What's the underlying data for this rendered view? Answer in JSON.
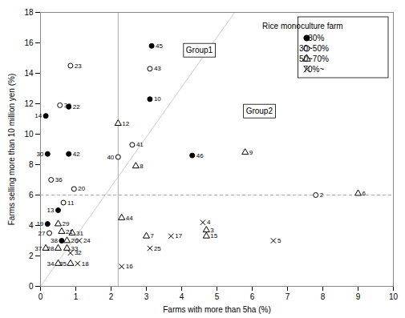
{
  "chart_data": {
    "type": "scatter",
    "xlabel": "Farms with more than 5ha (%)",
    "ylabel": "Farms selling more than 10 million yen (%)",
    "xlim": [
      0,
      10
    ],
    "ylim": [
      0,
      18
    ],
    "xticks": [
      0,
      1,
      2,
      3,
      4,
      5,
      6,
      7,
      8,
      9,
      10
    ],
    "yticks": [
      0,
      2,
      4,
      6,
      8,
      10,
      12,
      14,
      16,
      18
    ],
    "grid": false,
    "legend": "upper right",
    "legend_title": "Rice monoculture farm",
    "series": [
      {
        "name": "~30%",
        "marker": "filled_circle",
        "color": "#000000"
      },
      {
        "name": "30~50%",
        "marker": "open_circle",
        "color": "#000000"
      },
      {
        "name": "50~70%",
        "marker": "triangle",
        "color": "#000000"
      },
      {
        "name": "70%~",
        "marker": "cross",
        "color": "#000000"
      }
    ],
    "reference_lines": [
      {
        "x1": 0.0,
        "y1": 0.0,
        "x2": 5.5,
        "y2": 18.0,
        "color": "#cccccc",
        "line_style": "solid"
      },
      {
        "x": 2.2,
        "color": "#aaaaaa",
        "line_style": "solid"
      },
      {
        "y": 6.0,
        "color": "#aaaaaa",
        "line_style": "dashed"
      }
    ],
    "annotations": [
      {
        "text": "Group1",
        "x": 4.5,
        "y": 15.5
      },
      {
        "text": "Group2",
        "x": 6.2,
        "y": 11.5
      }
    ],
    "points": [
      {
        "label": "14",
        "x": 0.15,
        "y": 11.2,
        "marker": "filled_circle",
        "label_position": "left"
      },
      {
        "label": "39",
        "x": 0.55,
        "y": 11.9,
        "marker": "open_circle",
        "label_position": "right"
      },
      {
        "label": "22",
        "x": 0.8,
        "y": 11.8,
        "marker": "filled_circle",
        "label_position": "right"
      },
      {
        "label": "23",
        "x": 0.85,
        "y": 14.5,
        "marker": "open_circle",
        "label_position": "right"
      },
      {
        "label": "30",
        "x": 0.2,
        "y": 8.7,
        "marker": "filled_circle",
        "label_position": "left"
      },
      {
        "label": "42",
        "x": 0.8,
        "y": 8.7,
        "marker": "filled_circle",
        "label_position": "right"
      },
      {
        "label": "36",
        "x": 0.3,
        "y": 7.0,
        "marker": "open_circle",
        "label_position": "right"
      },
      {
        "label": "20",
        "x": 0.95,
        "y": 6.4,
        "marker": "open_circle",
        "label_position": "right"
      },
      {
        "label": "11",
        "x": 0.65,
        "y": 5.5,
        "marker": "open_circle",
        "label_position": "right"
      },
      {
        "label": "13",
        "x": 0.5,
        "y": 5.0,
        "marker": "filled_circle",
        "label_position": "left"
      },
      {
        "label": "19",
        "x": 0.2,
        "y": 4.1,
        "marker": "filled_circle",
        "label_position": "left"
      },
      {
        "label": "29",
        "x": 0.5,
        "y": 4.1,
        "marker": "triangle",
        "label_position": "right"
      },
      {
        "label": "27",
        "x": 0.25,
        "y": 3.5,
        "marker": "open_circle",
        "label_position": "left"
      },
      {
        "label": "21",
        "x": 0.6,
        "y": 3.6,
        "marker": "triangle",
        "label_position": "right"
      },
      {
        "label": "31",
        "x": 0.9,
        "y": 3.5,
        "marker": "triangle",
        "label_position": "right"
      },
      {
        "label": "38",
        "x": 0.6,
        "y": 3.0,
        "marker": "filled_circle",
        "label_position": "left"
      },
      {
        "label": "26",
        "x": 0.75,
        "y": 3.0,
        "marker": "triangle",
        "label_position": "right"
      },
      {
        "label": "24",
        "x": 1.1,
        "y": 3.0,
        "marker": "cross",
        "label_position": "right"
      },
      {
        "label": "37",
        "x": 0.15,
        "y": 2.5,
        "marker": "triangle",
        "label_position": "left"
      },
      {
        "label": "28",
        "x": 0.5,
        "y": 2.5,
        "marker": "triangle",
        "label_position": "left"
      },
      {
        "label": "33",
        "x": 0.75,
        "y": 2.5,
        "marker": "triangle",
        "label_position": "right"
      },
      {
        "label": "32",
        "x": 0.85,
        "y": 2.2,
        "marker": "cross",
        "label_position": "right"
      },
      {
        "label": "34",
        "x": 0.5,
        "y": 1.5,
        "marker": "triangle",
        "label_position": "left"
      },
      {
        "label": "35",
        "x": 0.85,
        "y": 1.5,
        "marker": "triangle",
        "label_position": "left"
      },
      {
        "label": "18",
        "x": 1.05,
        "y": 1.5,
        "marker": "cross",
        "label_position": "right"
      },
      {
        "label": "10",
        "x": 3.1,
        "y": 12.3,
        "marker": "filled_circle",
        "label_position": "right"
      },
      {
        "label": "45",
        "x": 3.15,
        "y": 15.8,
        "marker": "filled_circle",
        "label_position": "right"
      },
      {
        "label": "43",
        "x": 3.1,
        "y": 14.3,
        "marker": "open_circle",
        "label_position": "right"
      },
      {
        "label": "12",
        "x": 2.2,
        "y": 10.7,
        "marker": "triangle",
        "label_position": "right"
      },
      {
        "label": "41",
        "x": 2.6,
        "y": 9.3,
        "marker": "open_circle",
        "label_position": "right"
      },
      {
        "label": "40",
        "x": 2.2,
        "y": 8.5,
        "marker": "open_circle",
        "label_position": "left"
      },
      {
        "label": "8",
        "x": 2.7,
        "y": 7.9,
        "marker": "triangle",
        "label_position": "right"
      },
      {
        "label": "44",
        "x": 2.3,
        "y": 4.5,
        "marker": "triangle",
        "label_position": "right"
      },
      {
        "label": "7",
        "x": 3.0,
        "y": 3.3,
        "marker": "triangle",
        "label_position": "right"
      },
      {
        "label": "25",
        "x": 3.1,
        "y": 2.5,
        "marker": "cross",
        "label_position": "right"
      },
      {
        "label": "17",
        "x": 3.7,
        "y": 3.3,
        "marker": "cross",
        "label_position": "right"
      },
      {
        "label": "16",
        "x": 2.3,
        "y": 1.3,
        "marker": "cross",
        "label_position": "right"
      },
      {
        "label": "46",
        "x": 4.3,
        "y": 8.6,
        "marker": "filled_circle",
        "label_position": "right"
      },
      {
        "label": "9",
        "x": 5.8,
        "y": 8.8,
        "marker": "triangle",
        "label_position": "right"
      },
      {
        "label": "4",
        "x": 4.6,
        "y": 4.2,
        "marker": "cross",
        "label_position": "right"
      },
      {
        "label": "3",
        "x": 4.7,
        "y": 3.7,
        "marker": "triangle",
        "label_position": "right"
      },
      {
        "label": "15",
        "x": 4.7,
        "y": 3.3,
        "marker": "triangle",
        "label_position": "right"
      },
      {
        "label": "2",
        "x": 7.8,
        "y": 6.0,
        "marker": "open_circle",
        "label_position": "right"
      },
      {
        "label": "6",
        "x": 9.0,
        "y": 6.1,
        "marker": "triangle",
        "label_position": "right"
      },
      {
        "label": "5",
        "x": 6.6,
        "y": 3.0,
        "marker": "cross",
        "label_position": "right"
      }
    ]
  }
}
